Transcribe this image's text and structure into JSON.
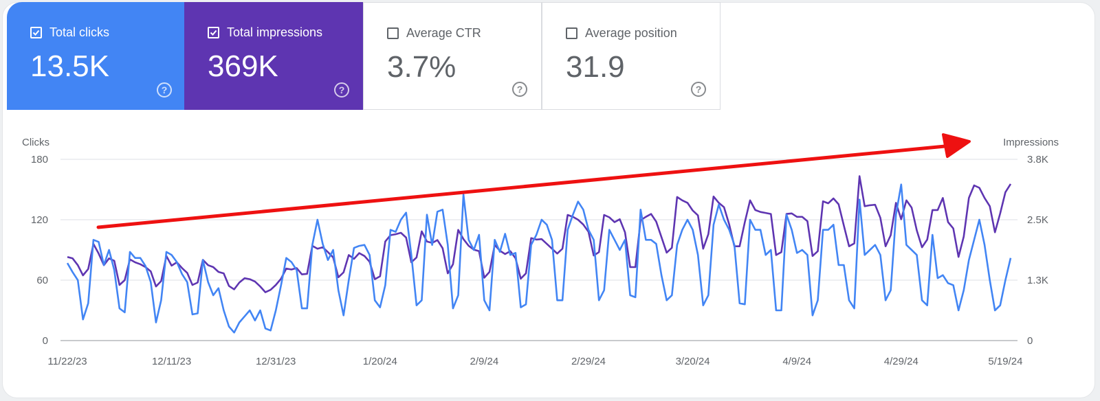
{
  "metrics": [
    {
      "label": "Total clicks",
      "value": "13.5K",
      "checked": true,
      "color": "#4285f4"
    },
    {
      "label": "Total impressions",
      "value": "369K",
      "checked": true,
      "color": "#5e35b1"
    },
    {
      "label": "Average CTR",
      "value": "3.7%",
      "checked": false
    },
    {
      "label": "Average position",
      "value": "31.9",
      "checked": false
    }
  ],
  "help_glyph": "?",
  "chart_data": {
    "type": "line",
    "start_date": "11/22/23",
    "x_tick_labels": [
      "11/22/23",
      "12/11/23",
      "12/31/23",
      "1/20/24",
      "2/9/24",
      "2/29/24",
      "3/20/24",
      "4/9/24",
      "4/29/24",
      "5/19/24"
    ],
    "left_axis": {
      "label": "Clicks",
      "ylim": [
        0,
        180
      ],
      "ticks": [
        "0",
        "60",
        "120",
        "180"
      ]
    },
    "right_axis": {
      "label": "Impressions",
      "ylim": [
        0,
        3750
      ],
      "ticks": [
        "0",
        "1.3K",
        "2.5K",
        "3.8K"
      ]
    },
    "grid": true,
    "annotation": "red upward trend arrow",
    "annotation_color": "#ee1111",
    "series": [
      {
        "name": "Clicks",
        "axis": "left",
        "color": "#4285f4",
        "values": [
          77,
          68,
          60,
          21,
          37,
          100,
          98,
          75,
          90,
          70,
          32,
          28,
          88,
          82,
          82,
          74,
          58,
          18,
          40,
          88,
          85,
          78,
          66,
          58,
          26,
          27,
          80,
          58,
          45,
          52,
          30,
          14,
          8,
          18,
          24,
          30,
          20,
          30,
          12,
          10,
          30,
          55,
          82,
          78,
          70,
          32,
          32,
          95,
          120,
          96,
          80,
          90,
          50,
          25,
          60,
          92,
          94,
          95,
          85,
          40,
          33,
          55,
          110,
          108,
          120,
          127,
          85,
          35,
          40,
          125,
          95,
          128,
          130,
          95,
          32,
          45,
          145,
          100,
          90,
          105,
          40,
          30,
          100,
          88,
          106,
          85,
          87,
          33,
          36,
          95,
          105,
          120,
          115,
          100,
          40,
          40,
          110,
          125,
          138,
          130,
          110,
          100,
          40,
          50,
          110,
          100,
          90,
          100,
          45,
          43,
          130,
          100,
          100,
          96,
          65,
          40,
          45,
          95,
          110,
          120,
          110,
          85,
          35,
          45,
          115,
          135,
          120,
          110,
          95,
          37,
          36,
          120,
          110,
          110,
          85,
          90,
          30,
          30,
          125,
          110,
          87,
          90,
          85,
          25,
          40,
          110,
          110,
          115,
          75,
          75,
          40,
          32,
          140,
          85,
          90,
          95,
          85,
          40,
          50,
          125,
          155,
          95,
          90,
          85,
          40,
          35,
          105,
          62,
          65,
          57,
          55,
          30,
          50,
          80,
          100,
          120,
          95,
          60,
          30,
          35,
          60,
          82
        ]
      },
      {
        "name": "Impressions",
        "axis": "right",
        "color": "#5e35b1",
        "values": [
          1730,
          1700,
          1560,
          1350,
          1480,
          2000,
          1800,
          1560,
          1700,
          1650,
          1150,
          1250,
          1680,
          1620,
          1580,
          1520,
          1430,
          1120,
          1230,
          1750,
          1550,
          1620,
          1500,
          1400,
          1150,
          1200,
          1670,
          1560,
          1520,
          1420,
          1390,
          1130,
          1060,
          1200,
          1290,
          1270,
          1220,
          1120,
          1000,
          1050,
          1150,
          1280,
          1490,
          1470,
          1500,
          1370,
          1380,
          1960,
          1900,
          1930,
          1830,
          1720,
          1310,
          1410,
          1770,
          1690,
          1810,
          1750,
          1630,
          1270,
          1330,
          2050,
          2180,
          2200,
          2230,
          2130,
          1620,
          1720,
          2260,
          2050,
          2020,
          2080,
          1910,
          1390,
          1580,
          2290,
          2100,
          1960,
          1880,
          1850,
          1300,
          1420,
          1980,
          1860,
          1790,
          1850,
          1700,
          1280,
          1390,
          2120,
          2090,
          2100,
          2000,
          1900,
          1800,
          1900,
          2600,
          2560,
          2500,
          2400,
          2250,
          1760,
          1830,
          2600,
          2550,
          2450,
          2510,
          2240,
          1520,
          1520,
          2490,
          2560,
          2620,
          2460,
          2140,
          1820,
          1920,
          2970,
          2900,
          2850,
          2690,
          2590,
          1900,
          2200,
          2980,
          2850,
          2760,
          2400,
          1950,
          1950,
          2450,
          2900,
          2700,
          2660,
          2640,
          2620,
          1770,
          1830,
          2620,
          2630,
          2560,
          2560,
          2470,
          1750,
          1850,
          2880,
          2840,
          2940,
          2820,
          2380,
          1950,
          2010,
          3400,
          2780,
          2800,
          2810,
          2540,
          1950,
          2180,
          2850,
          2510,
          2900,
          2750,
          2280,
          1930,
          2090,
          2700,
          2700,
          2950,
          2450,
          2320,
          1730,
          2150,
          2950,
          3210,
          3160,
          2950,
          2780,
          2240,
          2630,
          3070,
          3240
        ]
      }
    ]
  }
}
